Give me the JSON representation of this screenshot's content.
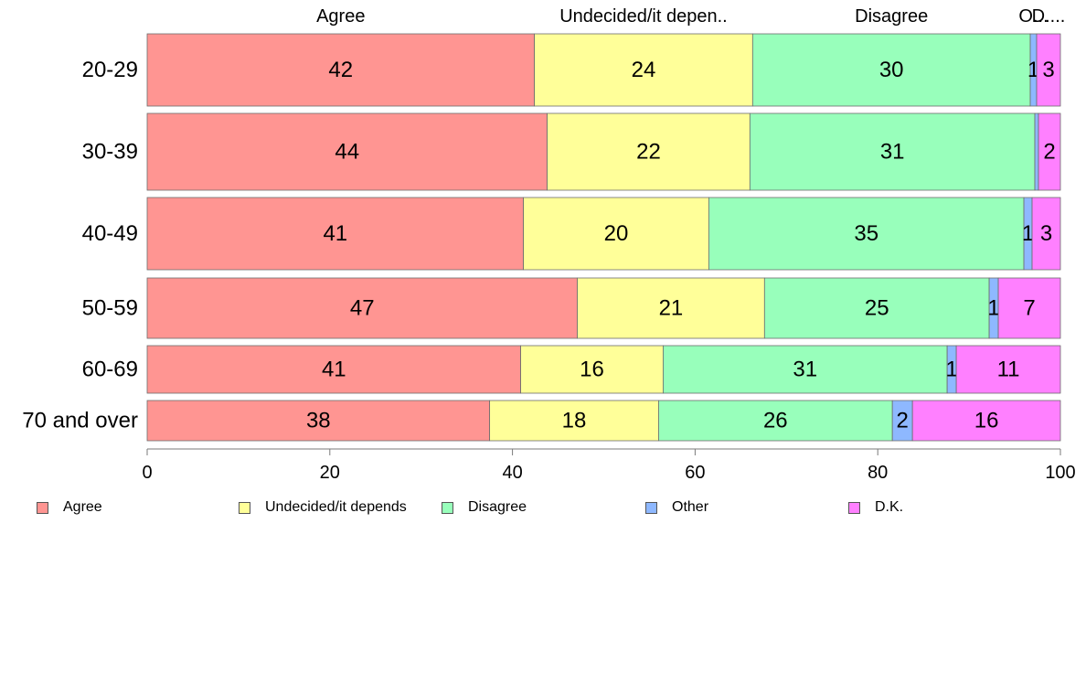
{
  "chart_data": {
    "type": "bar",
    "orientation": "horizontal",
    "stacked": true,
    "categories": [
      "20-29",
      "30-39",
      "40-49",
      "50-59",
      "60-69",
      "70 and over"
    ],
    "series": [
      {
        "name": "Agree",
        "color": "#ff9592",
        "values": [
          42.4,
          43.8,
          41.2,
          47.1,
          40.9,
          37.5
        ],
        "labels": [
          "42",
          "44",
          "41",
          "47",
          "41",
          "38"
        ]
      },
      {
        "name": "Undecided/it depends",
        "color": "#ffff99",
        "values": [
          23.9,
          22.2,
          20.3,
          20.5,
          15.6,
          18.5
        ],
        "labels": [
          "24",
          "22",
          "20",
          "21",
          "16",
          "18"
        ]
      },
      {
        "name": "Disagree",
        "color": "#98ffbb",
        "values": [
          30.4,
          31.2,
          34.5,
          24.6,
          31.1,
          25.6
        ],
        "labels": [
          "30",
          "31",
          "35",
          "25",
          "31",
          "26"
        ]
      },
      {
        "name": "Other",
        "color": "#8eb8ff",
        "values": [
          0.7,
          0.4,
          0.9,
          1.0,
          1.0,
          2.2
        ],
        "labels": [
          "1",
          "",
          "1",
          "1",
          "1",
          "2"
        ]
      },
      {
        "name": "D.K.",
        "color": "#ff80ff",
        "values": [
          2.6,
          2.4,
          3.1,
          6.8,
          11.4,
          16.2
        ],
        "labels": [
          "3",
          "2",
          "3",
          "7",
          "11",
          "16"
        ]
      }
    ],
    "column_headers": [
      "Agree",
      "Undecided/it depen..",
      "Disagree",
      "O...",
      "D...."
    ],
    "x_ticks": [
      "0",
      "20",
      "40",
      "60",
      "80",
      "100"
    ],
    "xlim": [
      0,
      100
    ],
    "grid": false,
    "legend_placement": "bottom"
  }
}
